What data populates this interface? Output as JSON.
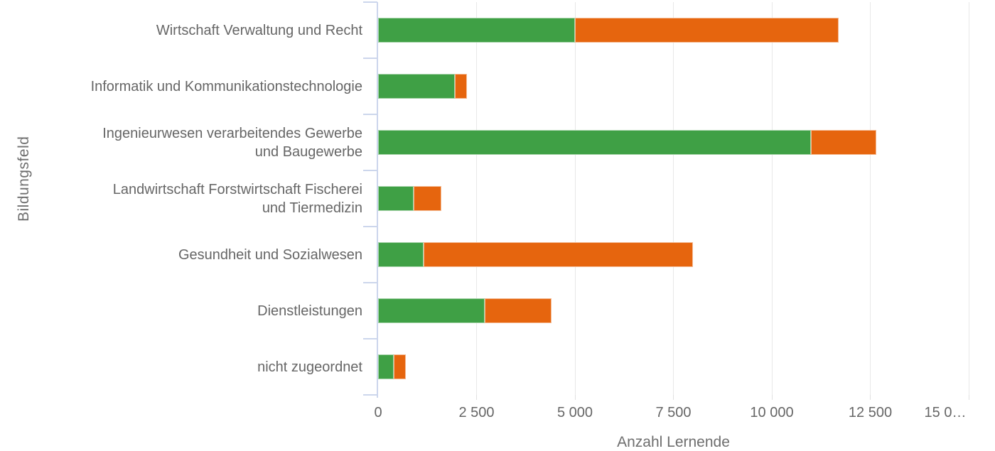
{
  "colors": {
    "green": "#3fa045",
    "orange": "#e6650e",
    "axis_line": "#ccd6ec",
    "gridline": "#e8e8e8",
    "text": "#666666"
  },
  "chart_data": {
    "type": "bar",
    "orientation": "horizontal",
    "stacked": true,
    "title": "",
    "xlabel": "Anzahl Lernende",
    "ylabel": "Bildungsfeld",
    "xlim": [
      0,
      15000
    ],
    "grid": true,
    "legend": false,
    "x_tick_values": [
      0,
      2500,
      5000,
      7500,
      10000,
      12500,
      15000
    ],
    "x_tick_labels": [
      "0",
      "2 500",
      "5 000",
      "7 500",
      "10 000",
      "12 500",
      "15 0…"
    ],
    "categories": [
      "Wirtschaft Verwaltung und Recht",
      "Informatik und Kommunikationstechnologie",
      "Ingenieurwesen verarbeitendes Gewerbe und Baugewerbe",
      "Landwirtschaft Forstwirtschaft Fischerei und Tiermedizin",
      "Gesundheit und Sozialwesen",
      "Dienstleistungen",
      "nicht zugeordnet"
    ],
    "category_lines": [
      [
        "Wirtschaft Verwaltung und Recht"
      ],
      [
        "Informatik und Kommunikationstechnologie"
      ],
      [
        "Ingenieurwesen verarbeitendes Gewerbe",
        "und Baugewerbe"
      ],
      [
        "Landwirtschaft Forstwirtschaft Fischerei",
        "und Tiermedizin"
      ],
      [
        "Gesundheit und Sozialwesen"
      ],
      [
        "Dienstleistungen"
      ],
      [
        "nicht zugeordnet"
      ]
    ],
    "series": [
      {
        "name": "green-series",
        "color": "#3fa045",
        "values": [
          5000,
          1950,
          11000,
          900,
          1150,
          2700,
          400
        ]
      },
      {
        "name": "orange-series",
        "color": "#e6650e",
        "values": [
          6700,
          300,
          1650,
          700,
          6850,
          1700,
          300
        ]
      }
    ]
  }
}
